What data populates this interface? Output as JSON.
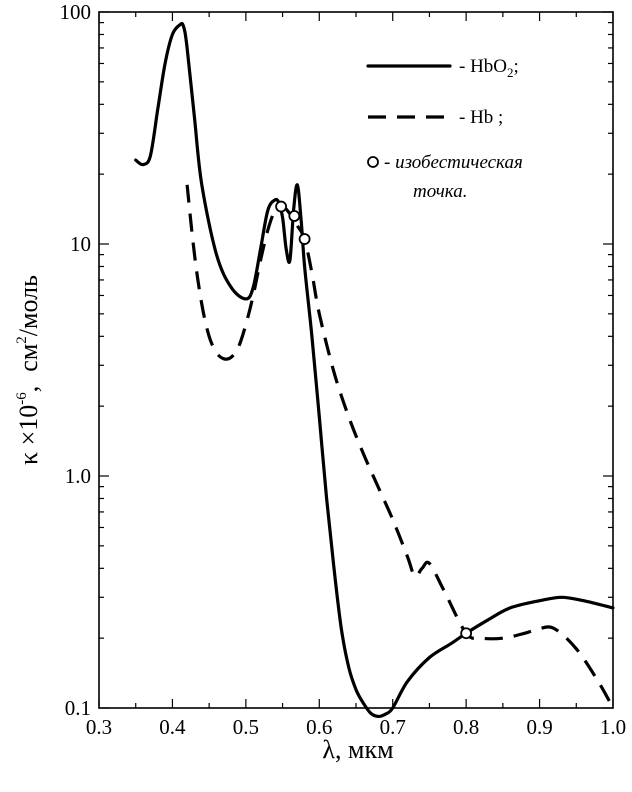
{
  "chart_data": {
    "type": "line",
    "xlabel": "λ,  мкм",
    "ylabel": "κ ×10",
    "ylabel_exp": "-6",
    "ylabel_sep": ",",
    "ylabel_unit": "см",
    "ylabel_unit_exp": "2",
    "ylabel_unit_rest": "/моль",
    "xlim": [
      0.3,
      1.0
    ],
    "ylim": [
      0.1,
      100
    ],
    "yscale": "log",
    "grid": false,
    "legend_position": "top-right",
    "x_ticks": [
      {
        "value": 0.3,
        "label": "0.3"
      },
      {
        "value": 0.4,
        "label": "0.4"
      },
      {
        "value": 0.5,
        "label": "0.5"
      },
      {
        "value": 0.6,
        "label": "0.6"
      },
      {
        "value": 0.7,
        "label": "0.7"
      },
      {
        "value": 0.8,
        "label": "0.8"
      },
      {
        "value": 0.9,
        "label": "0.9"
      },
      {
        "value": 1.0,
        "label": "1.0"
      }
    ],
    "y_ticks": [
      {
        "value": 100,
        "label": "100"
      },
      {
        "value": 10,
        "label": "10"
      },
      {
        "value": 1,
        "label": "1.0"
      },
      {
        "value": 0.1,
        "label": "0.1"
      }
    ],
    "legend": {
      "hbo2_prefix": "- HbO",
      "hbo2_sub": "2",
      "hbo2_suffix": ";",
      "hb": "- Hb ;",
      "iso_line1": "- изобестическая",
      "iso_line2": "точка."
    },
    "series": [
      {
        "name": "HbO2",
        "style": "solid",
        "x": [
          0.35,
          0.36,
          0.37,
          0.38,
          0.39,
          0.4,
          0.41,
          0.415,
          0.42,
          0.43,
          0.44,
          0.46,
          0.48,
          0.5,
          0.51,
          0.52,
          0.53,
          0.54,
          0.545,
          0.55,
          0.555,
          0.56,
          0.565,
          0.57,
          0.575,
          0.58,
          0.59,
          0.6,
          0.61,
          0.62,
          0.63,
          0.64,
          0.65,
          0.66,
          0.67,
          0.68,
          0.69,
          0.7,
          0.72,
          0.75,
          0.78,
          0.8,
          0.83,
          0.86,
          0.9,
          0.93,
          0.96,
          1.0
        ],
        "y": [
          23,
          22,
          24,
          38,
          60,
          80,
          88,
          87,
          70,
          35,
          18,
          9,
          6.5,
          5.8,
          6.5,
          9.5,
          14,
          15.5,
          15,
          13,
          9.5,
          8.5,
          14,
          18,
          13,
          8,
          4,
          1.8,
          0.8,
          0.4,
          0.22,
          0.15,
          0.12,
          0.105,
          0.095,
          0.092,
          0.094,
          0.1,
          0.13,
          0.165,
          0.19,
          0.21,
          0.24,
          0.27,
          0.29,
          0.3,
          0.29,
          0.27
        ]
      },
      {
        "name": "Hb",
        "style": "dashed",
        "x": [
          0.42,
          0.43,
          0.44,
          0.45,
          0.46,
          0.47,
          0.48,
          0.49,
          0.5,
          0.51,
          0.52,
          0.53,
          0.54,
          0.55,
          0.56,
          0.57,
          0.58,
          0.59,
          0.6,
          0.62,
          0.64,
          0.66,
          0.68,
          0.7,
          0.72,
          0.73,
          0.74,
          0.75,
          0.77,
          0.8,
          0.82,
          0.85,
          0.88,
          0.9,
          0.92,
          0.95,
          0.98,
          1.0
        ],
        "y": [
          18,
          9,
          5.5,
          4,
          3.4,
          3.2,
          3.25,
          3.6,
          4.5,
          6,
          8.5,
          11.5,
          14,
          14.5,
          13.5,
          12,
          10.5,
          7.5,
          5,
          2.8,
          1.8,
          1.25,
          0.9,
          0.65,
          0.45,
          0.37,
          0.4,
          0.42,
          0.32,
          0.21,
          0.2,
          0.2,
          0.21,
          0.22,
          0.22,
          0.18,
          0.13,
          0.1
        ]
      }
    ],
    "isosbestic_points": [
      {
        "x": 0.548,
        "y": 14.5
      },
      {
        "x": 0.566,
        "y": 13.2
      },
      {
        "x": 0.58,
        "y": 10.5
      },
      {
        "x": 0.8,
        "y": 0.21
      }
    ]
  }
}
